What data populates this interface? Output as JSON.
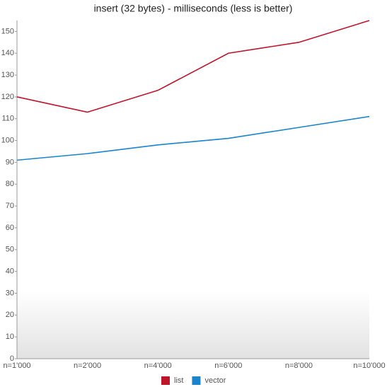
{
  "chart_data": {
    "type": "line",
    "title": "insert (32 bytes) - milliseconds (less is better)",
    "categories": [
      "n=1'000",
      "n=2'000",
      "n=4'000",
      "n=6'000",
      "n=8'000",
      "n=10'000"
    ],
    "series": [
      {
        "name": "list",
        "color": "#c0142a",
        "values": [
          120,
          113,
          123,
          140,
          145,
          155
        ]
      },
      {
        "name": "vector",
        "color": "#1a85cc",
        "values": [
          91,
          94,
          98,
          101,
          106,
          111
        ]
      }
    ],
    "ylim": [
      0,
      155
    ],
    "yticks": [
      0,
      10,
      20,
      30,
      40,
      50,
      60,
      70,
      80,
      90,
      100,
      110,
      120,
      130,
      140,
      150
    ],
    "grid": false,
    "legend": "bottom"
  }
}
